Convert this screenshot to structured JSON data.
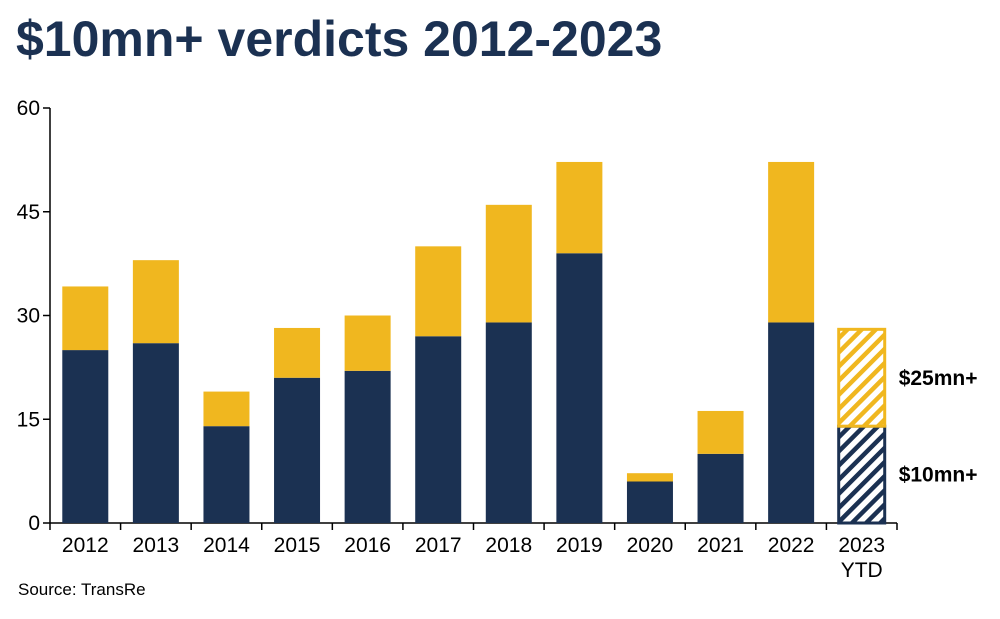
{
  "title": "$10mn+ verdicts 2012-2023",
  "source": "Source: TransRe",
  "colors": {
    "navy": "#1b3152",
    "gold": "#f0b71f",
    "title": "#1b3152"
  },
  "chart_data": {
    "type": "bar",
    "stacked": true,
    "categories": [
      "2012",
      "2013",
      "2014",
      "2015",
      "2016",
      "2017",
      "2018",
      "2019",
      "2020",
      "2021",
      "2022",
      "2023 YTD"
    ],
    "category_lines": [
      [
        "2012"
      ],
      [
        "2013"
      ],
      [
        "2014"
      ],
      [
        "2015"
      ],
      [
        "2016"
      ],
      [
        "2017"
      ],
      [
        "2018"
      ],
      [
        "2019"
      ],
      [
        "2020"
      ],
      [
        "2021"
      ],
      [
        "2022"
      ],
      [
        "2023",
        "YTD"
      ]
    ],
    "series": [
      {
        "name": "$10mn+",
        "color": "#1b3152",
        "values": [
          25,
          26,
          14,
          21,
          22,
          27,
          29,
          39,
          6,
          10,
          29,
          14
        ]
      },
      {
        "name": "$25mn+",
        "color": "#f0b71f",
        "values": [
          9.2,
          12,
          5,
          7.2,
          8,
          13,
          17,
          13.2,
          1.2,
          6.2,
          23.2,
          14
        ]
      }
    ],
    "hatched_categories": [
      "2023 YTD"
    ],
    "ylim": [
      0,
      60
    ],
    "yticks": [
      0,
      15,
      30,
      45,
      60
    ],
    "grid": false,
    "legend_placement": "right, labels beside last bar"
  }
}
